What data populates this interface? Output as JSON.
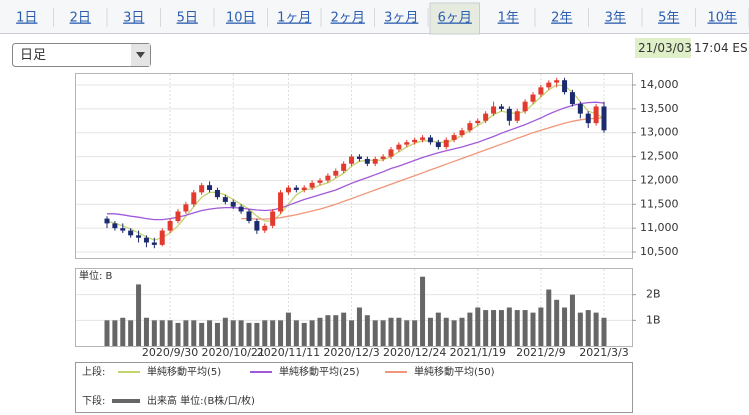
{
  "tabs": [
    "1日",
    "2日",
    "3日",
    "5日",
    "10日",
    "1ヶ月",
    "2ヶ月",
    "3ヶ月",
    "6ヶ月",
    "1年",
    "2年",
    "3年",
    "5年",
    "10年"
  ],
  "active_tab": 8,
  "dropdown": "日足",
  "date": "21/03/03",
  "time": "17:04 ES",
  "chart_data": {
    "type": "candlestick",
    "up_color": "#e33a2f",
    "down_color": "#1c2a6e",
    "categories": [
      null,
      null,
      null,
      null,
      null,
      null,
      null,
      null,
      "2020/9/30",
      null,
      null,
      null,
      null,
      null,
      null,
      null,
      "2020/10/21",
      null,
      null,
      null,
      null,
      null,
      null,
      "2020/11/11",
      null,
      null,
      null,
      null,
      null,
      null,
      null,
      "2020/12/3",
      null,
      null,
      null,
      null,
      null,
      null,
      null,
      "2020/12/24",
      null,
      null,
      null,
      null,
      null,
      null,
      null,
      "2021/1/19",
      null,
      null,
      null,
      null,
      null,
      null,
      null,
      "2021/2/9",
      null,
      null,
      null,
      null,
      null,
      null,
      null,
      "2021/3/3"
    ],
    "open": [
      11200,
      11100,
      11000,
      10950,
      10850,
      10800,
      10700,
      10650,
      10950,
      11150,
      11350,
      11500,
      11750,
      11900,
      11800,
      11650,
      11550,
      11450,
      11350,
      11150,
      10950,
      11050,
      11350,
      11750,
      11850,
      11800,
      11850,
      11950,
      12000,
      12100,
      12200,
      12350,
      12500,
      12450,
      12350,
      12450,
      12500,
      12650,
      12750,
      12800,
      12850,
      12900,
      12800,
      12700,
      12850,
      12950,
      13050,
      13200,
      13250,
      13400,
      13550,
      13500,
      13250,
      13450,
      13650,
      13800,
      13950,
      14050,
      14100,
      13850,
      13600,
      13400,
      13200,
      13550
    ],
    "high": [
      11250,
      11150,
      11100,
      11000,
      10950,
      10850,
      10800,
      11000,
      11200,
      11400,
      11550,
      11800,
      11950,
      11980,
      11850,
      11700,
      11600,
      11500,
      11400,
      11200,
      11100,
      11400,
      11800,
      11900,
      11900,
      11900,
      12000,
      12050,
      12150,
      12250,
      12400,
      12550,
      12550,
      12500,
      12500,
      12550,
      12700,
      12800,
      12850,
      12900,
      12950,
      12950,
      12850,
      12900,
      13000,
      13100,
      13250,
      13300,
      13450,
      13650,
      13600,
      13550,
      13500,
      13700,
      13850,
      14000,
      14100,
      14150,
      14150,
      13900,
      13650,
      13450,
      13600,
      13650
    ],
    "low": [
      11000,
      10950,
      10900,
      10800,
      10700,
      10600,
      10580,
      10620,
      10900,
      11100,
      11300,
      11450,
      11700,
      11750,
      11600,
      11500,
      11400,
      11300,
      11100,
      10880,
      10900,
      11000,
      11300,
      11700,
      11750,
      11750,
      11800,
      11900,
      11950,
      12050,
      12150,
      12300,
      12400,
      12300,
      12300,
      12400,
      12450,
      12600,
      12700,
      12750,
      12800,
      12750,
      12650,
      12650,
      12800,
      12900,
      13000,
      13150,
      13200,
      13350,
      13450,
      13150,
      13200,
      13400,
      13600,
      13750,
      13900,
      13950,
      13800,
      13550,
      13300,
      13100,
      13150,
      13000
    ],
    "close": [
      11100,
      11000,
      10950,
      10850,
      10800,
      10700,
      10650,
      10950,
      11150,
      11350,
      11500,
      11750,
      11900,
      11800,
      11650,
      11550,
      11450,
      11350,
      11150,
      10950,
      11050,
      11350,
      11750,
      11850,
      11800,
      11850,
      11950,
      12000,
      12100,
      12200,
      12350,
      12500,
      12450,
      12350,
      12450,
      12500,
      12650,
      12750,
      12800,
      12850,
      12900,
      12800,
      12700,
      12850,
      12950,
      13050,
      13200,
      13250,
      13400,
      13550,
      13500,
      13250,
      13450,
      13650,
      13800,
      13950,
      14050,
      14100,
      13850,
      13600,
      13400,
      13200,
      13550,
      13050
    ],
    "series": [
      {
        "name": "単純移動平均(5)",
        "color": "#c5d36e",
        "values": [
          11150,
          11100,
          11050,
          10980,
          10900,
          10820,
          10750,
          10800,
          10900,
          11050,
          11250,
          11450,
          11650,
          11750,
          11750,
          11700,
          11600,
          11500,
          11400,
          11250,
          11150,
          11150,
          11300,
          11500,
          11700,
          11800,
          11830,
          11900,
          11950,
          12050,
          12150,
          12300,
          12400,
          12420,
          12420,
          12430,
          12500,
          12600,
          12700,
          12780,
          12830,
          12830,
          12800,
          12800,
          12850,
          12950,
          13050,
          13150,
          13250,
          13380,
          13450,
          13420,
          13400,
          13450,
          13600,
          13750,
          13900,
          14000,
          13980,
          13850,
          13650,
          13450,
          13400,
          13300
        ]
      },
      {
        "name": "単純移動平均(25)",
        "color": "#a259d9",
        "values": [
          11300,
          11300,
          11280,
          11250,
          11230,
          11200,
          11180,
          11180,
          11200,
          11230,
          11270,
          11320,
          11370,
          11400,
          11420,
          11430,
          11430,
          11420,
          11400,
          11380,
          11370,
          11380,
          11420,
          11480,
          11540,
          11600,
          11650,
          11700,
          11750,
          11800,
          11870,
          11940,
          12000,
          12060,
          12120,
          12180,
          12250,
          12300,
          12360,
          12420,
          12480,
          12530,
          12580,
          12620,
          12660,
          12700,
          12750,
          12800,
          12860,
          12920,
          12990,
          13050,
          13110,
          13170,
          13240,
          13310,
          13390,
          13460,
          13520,
          13570,
          13610,
          13630,
          13640,
          13620
        ]
      },
      {
        "name": "単純移動平均(50)",
        "color": "#f0967a",
        "values": [
          null,
          null,
          null,
          null,
          null,
          null,
          null,
          null,
          null,
          null,
          null,
          null,
          null,
          null,
          null,
          null,
          null,
          11200,
          11200,
          11190,
          11190,
          11200,
          11220,
          11250,
          11280,
          11320,
          11360,
          11400,
          11450,
          11500,
          11560,
          11620,
          11680,
          11740,
          11800,
          11860,
          11920,
          11980,
          12040,
          12100,
          12160,
          12220,
          12280,
          12340,
          12400,
          12460,
          12520,
          12580,
          12640,
          12700,
          12760,
          12820,
          12880,
          12940,
          13000,
          13050,
          13100,
          13150,
          13200,
          13240,
          13270,
          13290,
          13300,
          13310
        ]
      }
    ],
    "ylim": [
      10375,
      14230
    ],
    "yticks": [
      {
        "value": 10500,
        "label": "10,500"
      },
      {
        "value": 11000,
        "label": "11,000"
      },
      {
        "value": 11500,
        "label": "11,500"
      },
      {
        "value": 12000,
        "label": "12,000"
      },
      {
        "value": 12500,
        "label": "12,500"
      },
      {
        "value": 13000,
        "label": "13,000"
      },
      {
        "value": 13500,
        "label": "13,500"
      },
      {
        "value": 14000,
        "label": "14,000"
      }
    ],
    "grid": true,
    "legend_upper": "上段:",
    "legend_lower": "下段:",
    "volume": {
      "name": "出来高 単位:(B株/口/枚)",
      "color": "#666666",
      "unit_label": "単位: B",
      "values": [
        1.0,
        1.0,
        1.1,
        1.0,
        2.4,
        1.1,
        1.0,
        1.0,
        1.0,
        0.9,
        1.0,
        1.0,
        0.9,
        1.0,
        0.9,
        1.1,
        1.0,
        1.0,
        0.9,
        0.9,
        1.0,
        1.0,
        1.0,
        1.3,
        1.0,
        0.9,
        1.0,
        1.1,
        1.2,
        1.2,
        1.3,
        1.0,
        1.5,
        1.2,
        1.0,
        1.0,
        1.1,
        1.1,
        1.0,
        1.0,
        2.7,
        1.1,
        1.3,
        1.1,
        1.0,
        1.1,
        1.3,
        1.5,
        1.4,
        1.4,
        1.4,
        1.5,
        1.4,
        1.4,
        1.3,
        1.5,
        2.2,
        1.8,
        1.5,
        2.0,
        1.3,
        1.4,
        1.3,
        1.1
      ],
      "ylim": [
        0,
        3
      ],
      "yticks": [
        {
          "value": 1,
          "label": "1B"
        },
        {
          "value": 2,
          "label": "2B"
        }
      ]
    }
  }
}
